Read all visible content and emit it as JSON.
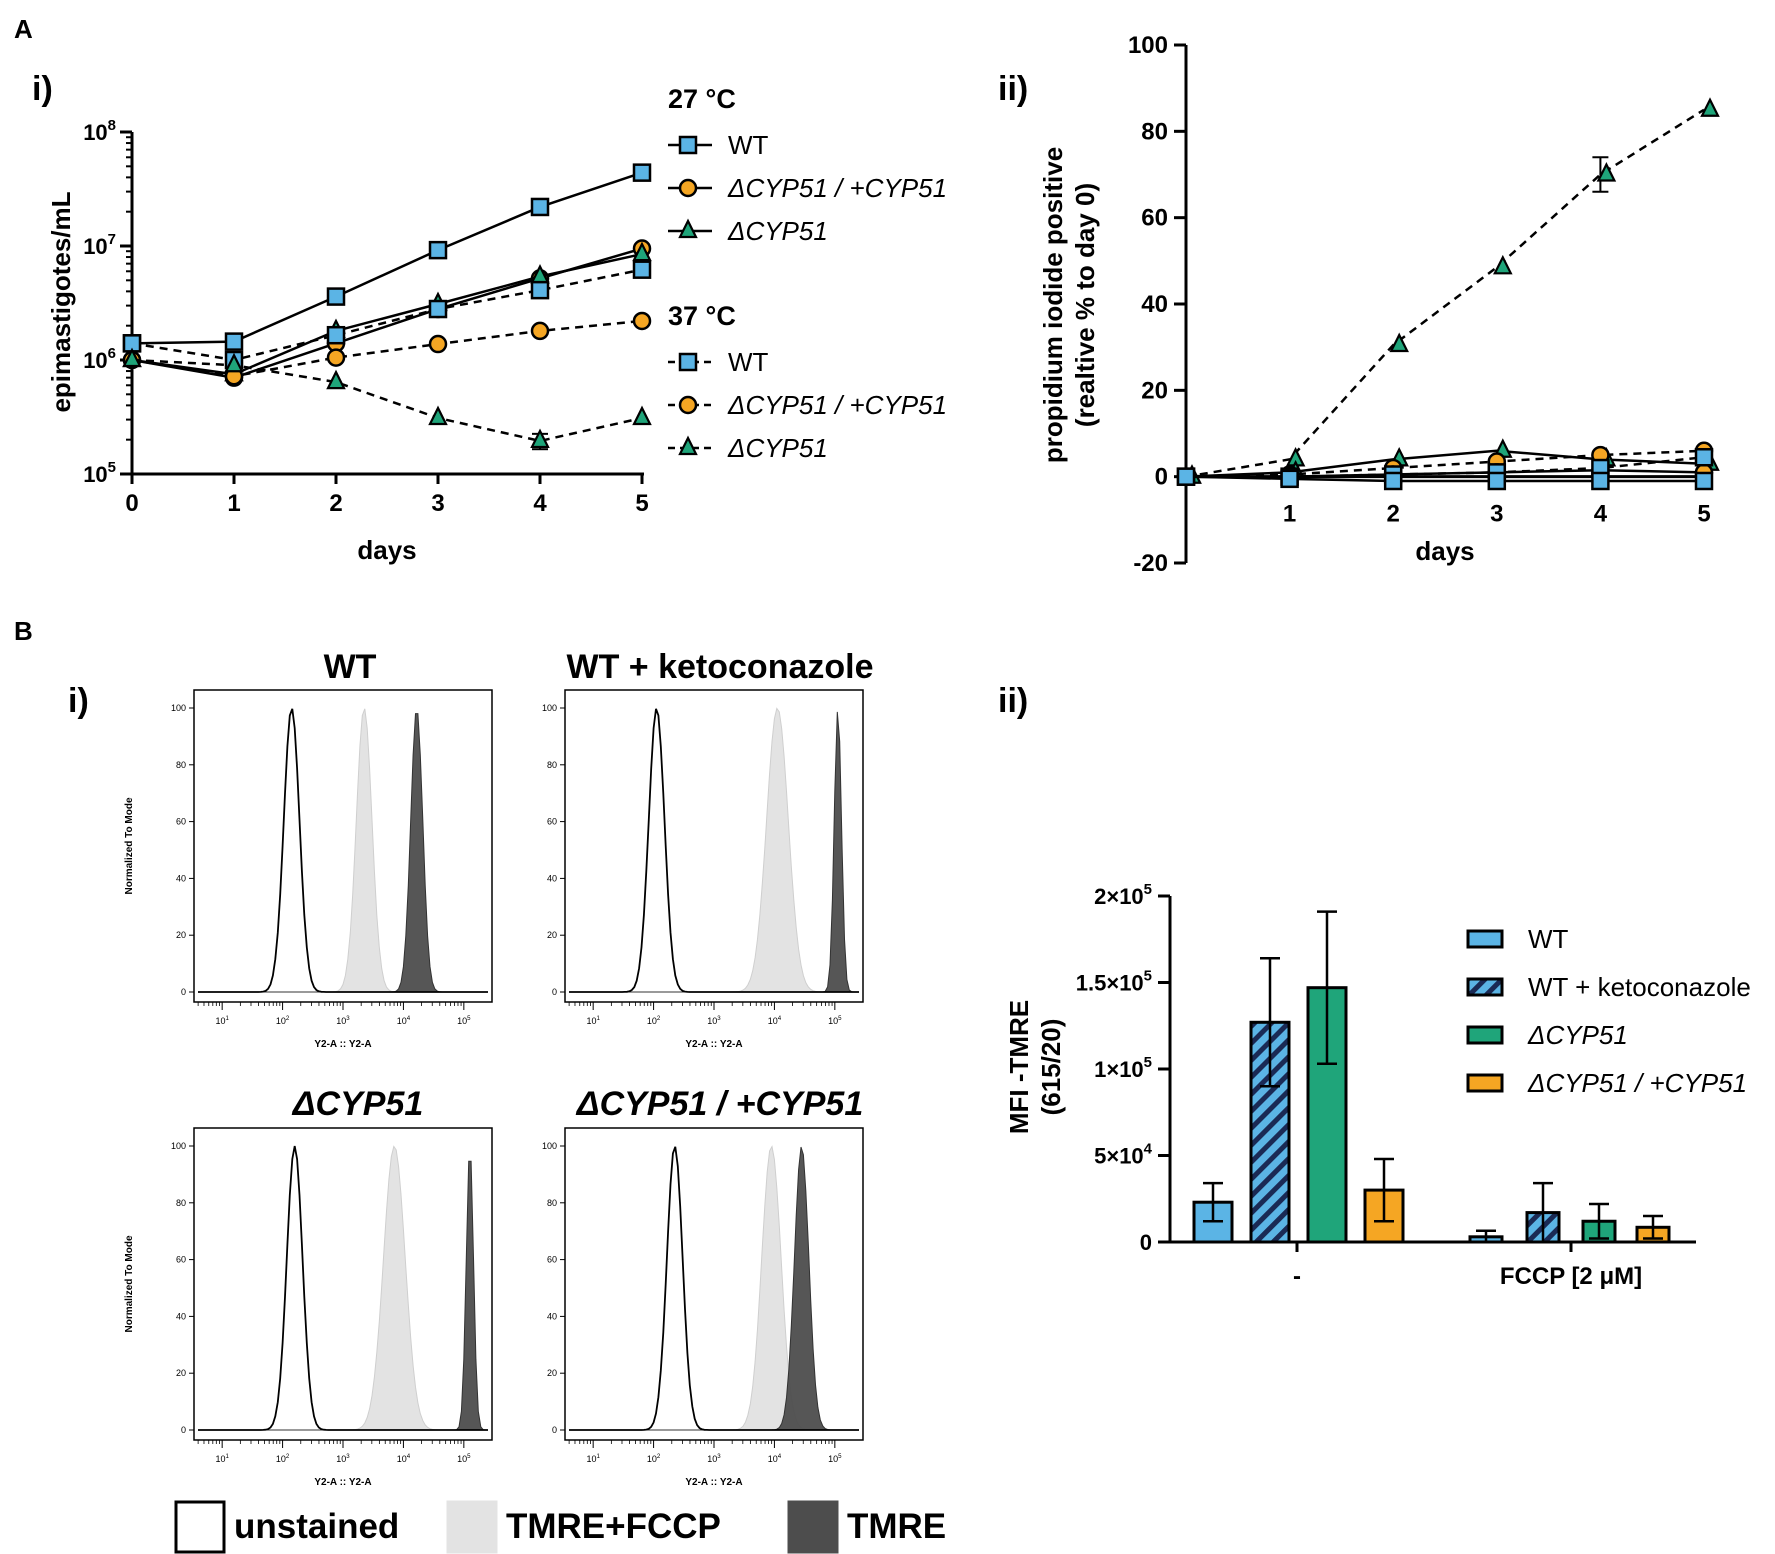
{
  "panels": {
    "A": "A",
    "B": "B",
    "Ai": "i)",
    "Aii": "ii)",
    "Bi": "i)",
    "Bii": "ii)"
  },
  "colors": {
    "wt": "#5BB4E5",
    "rescue": "#F5A623",
    "ko": "#1FA57A",
    "tmre": "#4d4d4d",
    "fccp": "#e3e3e3"
  },
  "chart_data": [
    {
      "id": "A-i",
      "type": "line",
      "title": "",
      "xlabel": "days",
      "ylabel": "epimastigotes/mL",
      "yscale": "log",
      "ylim": [
        100000,
        100000000
      ],
      "xlim": [
        0,
        5
      ],
      "x_ticks": [
        0,
        1,
        2,
        3,
        4,
        5
      ],
      "y_ticks": [
        {
          "value": 100000,
          "base": "10",
          "exp": "5"
        },
        {
          "value": 1000000,
          "base": "10",
          "exp": "6"
        },
        {
          "value": 10000000,
          "base": "10",
          "exp": "7"
        },
        {
          "value": 100000000,
          "base": "10",
          "exp": "8"
        }
      ],
      "x": [
        0,
        1,
        2,
        3,
        4,
        5
      ],
      "legend_groups": [
        {
          "title": "27 °C",
          "entries": [
            "WT",
            "ΔCYP51 / +CYP51",
            "ΔCYP51"
          ]
        },
        {
          "title": "37 °C",
          "entries": [
            "WT",
            "ΔCYP51 / +CYP51",
            "ΔCYP51"
          ]
        }
      ],
      "series": [
        {
          "name": "WT",
          "condition": "27 °C",
          "marker": "square",
          "color": "wt",
          "dashed": false,
          "values": [
            1400000,
            1450000,
            3600000,
            9200000,
            22000000,
            44000000
          ]
        },
        {
          "name": "ΔCYP51 / +CYP51",
          "condition": "27 °C",
          "marker": "circle",
          "color": "rescue",
          "dashed": false,
          "values": [
            1000000,
            700000,
            1400000,
            2800000,
            5200000,
            9500000
          ]
        },
        {
          "name": "ΔCYP51",
          "condition": "27 °C",
          "marker": "triangle",
          "color": "ko",
          "dashed": false,
          "values": [
            1000000,
            750000,
            1800000,
            3100000,
            5400000,
            8500000
          ]
        },
        {
          "name": "WT",
          "condition": "37 °C",
          "marker": "square",
          "color": "wt",
          "dashed": true,
          "values": [
            1400000,
            1000000,
            1650000,
            2800000,
            4100000,
            6200000
          ]
        },
        {
          "name": "ΔCYP51 / +CYP51",
          "condition": "37 °C",
          "marker": "circle",
          "color": "rescue",
          "dashed": true,
          "values": [
            1000000,
            720000,
            1050000,
            1380000,
            1800000,
            2200000
          ]
        },
        {
          "name": "ΔCYP51",
          "condition": "37 °C",
          "marker": "triangle",
          "color": "ko",
          "dashed": true,
          "values": [
            1000000,
            900000,
            640000,
            310000,
            195000,
            310000
          ],
          "errors": [
            0,
            0,
            0,
            0,
            30000,
            0
          ]
        }
      ]
    },
    {
      "id": "A-ii",
      "type": "line",
      "title": "",
      "xlabel": "days",
      "ylabel": [
        "propidium iodide positive",
        "(realtive % to day 0)"
      ],
      "ylim": [
        -20,
        100
      ],
      "xlim": [
        0,
        5
      ],
      "x_ticks": [
        1,
        2,
        3,
        4,
        5
      ],
      "y_ticks": [
        -20,
        0,
        20,
        40,
        60,
        80,
        100
      ],
      "x": [
        0,
        1,
        2,
        3,
        4,
        5
      ],
      "series": [
        {
          "name": "ΔCYP51",
          "condition": "37 °C",
          "marker": "triangle",
          "color": "ko",
          "dashed": true,
          "values": [
            0,
            4,
            30.5,
            48.5,
            70,
            85
          ],
          "errors": [
            0,
            0,
            0,
            0,
            4,
            0
          ]
        },
        {
          "name": "ΔCYP51",
          "condition": "27 °C",
          "marker": "triangle",
          "color": "ko",
          "dashed": false,
          "values": [
            0,
            1,
            4,
            6,
            4,
            3
          ]
        },
        {
          "name": "ΔCYP51 / +CYP51",
          "condition": "37 °C",
          "marker": "circle",
          "color": "rescue",
          "dashed": true,
          "values": [
            0,
            0.5,
            2,
            3.5,
            5,
            6
          ]
        },
        {
          "name": "ΔCYP51 / +CYP51",
          "condition": "27 °C",
          "marker": "circle",
          "color": "rescue",
          "dashed": false,
          "values": [
            0,
            0,
            0.5,
            1,
            1.5,
            1
          ]
        },
        {
          "name": "WT",
          "condition": "37 °C",
          "marker": "square",
          "color": "wt",
          "dashed": true,
          "values": [
            0,
            0,
            0.5,
            1,
            2,
            4.5
          ]
        },
        {
          "name": "WT",
          "condition": "27 °C",
          "marker": "square",
          "color": "wt",
          "dashed": false,
          "values": [
            0,
            -0.5,
            -1,
            -1,
            -1,
            -1
          ]
        }
      ]
    },
    {
      "id": "B-i",
      "type": "histogram",
      "xlabel": "Y2-A :: Y2-A",
      "ylabel": "Normalized To Mode",
      "x_log_ticks": [
        1,
        2,
        3,
        4,
        5
      ],
      "y_ticks": [
        0,
        20,
        40,
        60,
        80,
        100
      ],
      "legend": [
        "unstained",
        "TMRE+FCCP",
        "TMRE"
      ],
      "histograms": [
        {
          "title": "WT",
          "italic": false,
          "peaks": {
            "unstained": [
              2.15,
              0.13
            ],
            "fccp": [
              3.35,
              0.13
            ],
            "tmre": [
              4.22,
              0.1
            ]
          }
        },
        {
          "title": "WT + ketoconazole",
          "italic": false,
          "peaks": {
            "unstained": [
              2.05,
              0.13
            ],
            "fccp": [
              4.05,
              0.18
            ],
            "tmre": [
              5.05,
              0.06
            ]
          }
        },
        {
          "title": "ΔCYP51",
          "italic": true,
          "peaks": {
            "unstained": [
              2.2,
              0.13
            ],
            "fccp": [
              3.85,
              0.18
            ],
            "tmre": [
              5.1,
              0.06
            ]
          }
        },
        {
          "title": "ΔCYP51 / +CYP51",
          "italic": true,
          "peaks": {
            "unstained": [
              2.35,
              0.13
            ],
            "fccp": [
              3.95,
              0.16
            ],
            "tmre": [
              4.45,
              0.12
            ]
          }
        }
      ]
    },
    {
      "id": "B-ii",
      "type": "bar",
      "xlabel": "",
      "ylabel": [
        "MFI -TMRE",
        "(615/20)"
      ],
      "ylim": [
        0,
        200000
      ],
      "y_ticks": [
        {
          "value": 0,
          "label": "0",
          "exp": ""
        },
        {
          "value": 50000,
          "label": "5×10",
          "exp": "4"
        },
        {
          "value": 100000,
          "label": "1×10",
          "exp": "5"
        },
        {
          "value": 150000,
          "label": "1.5×10",
          "exp": "5"
        },
        {
          "value": 200000,
          "label": "2×10",
          "exp": "5"
        }
      ],
      "categories": [
        "-",
        "FCCP [2 μM]"
      ],
      "series": [
        {
          "name": "WT",
          "color": "wt",
          "hatched": false,
          "italic": false,
          "values": [
            23000,
            3000
          ],
          "errors": [
            11000,
            3500
          ]
        },
        {
          "name": "WT + ketoconazole",
          "color": "wt",
          "hatched": true,
          "italic": false,
          "values": [
            127000,
            17000
          ],
          "errors": [
            37000,
            17000
          ]
        },
        {
          "name": "ΔCYP51",
          "color": "ko",
          "hatched": false,
          "italic": true,
          "values": [
            147000,
            12000
          ],
          "errors": [
            44000,
            10000
          ]
        },
        {
          "name": "ΔCYP51 / +CYP51",
          "color": "rescue",
          "hatched": false,
          "italic": true,
          "values": [
            30000,
            8500
          ],
          "errors": [
            18000,
            6500
          ]
        }
      ]
    }
  ]
}
